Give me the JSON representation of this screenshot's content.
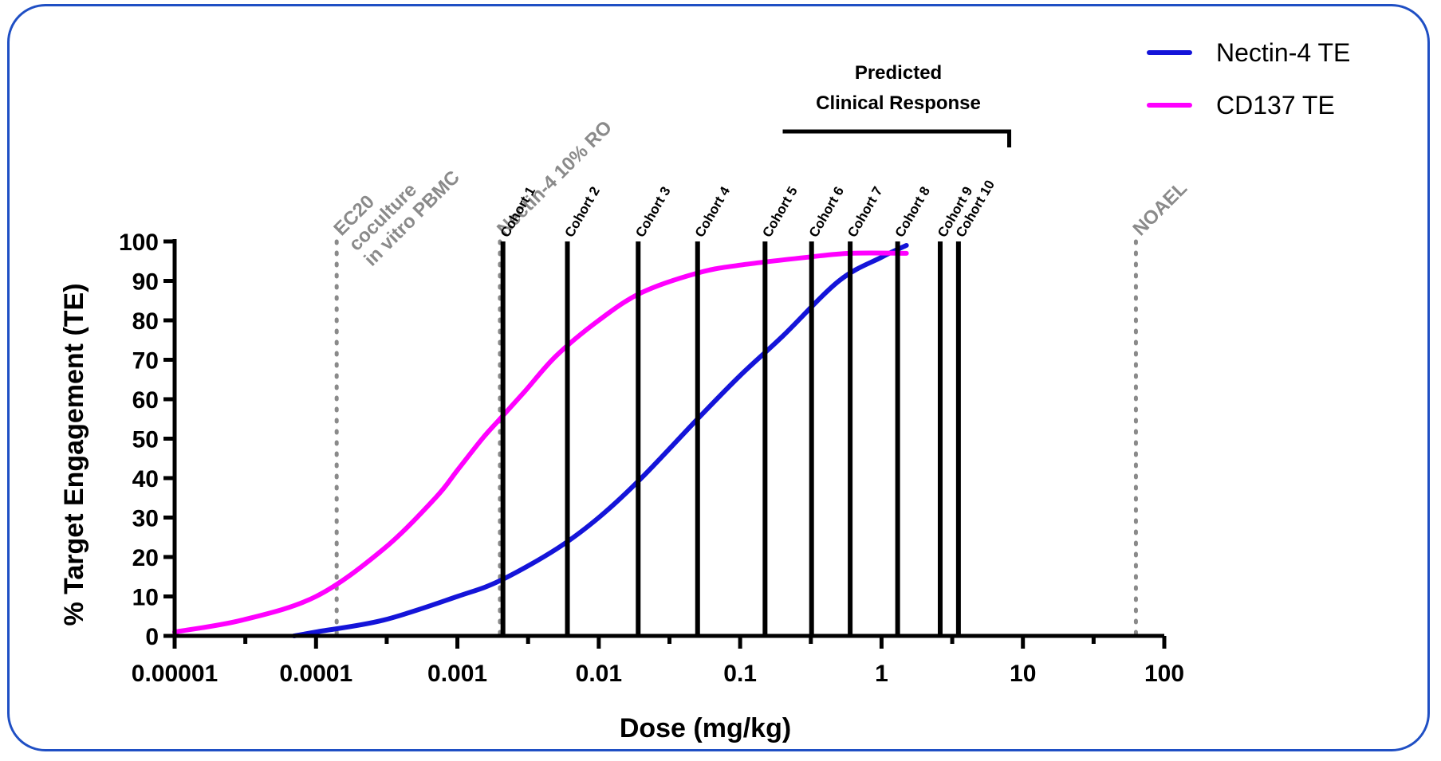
{
  "chart_data": {
    "type": "line",
    "xlabel": "Dose (mg/kg)",
    "ylabel": "% Target Engagement (TE)",
    "xscale": "log",
    "xlim": [
      1e-05,
      100
    ],
    "ylim": [
      0,
      100
    ],
    "x_ticks": [
      1e-05,
      0.0001,
      0.001,
      0.01,
      0.1,
      1,
      10,
      100
    ],
    "x_tick_labels": [
      "0.00001",
      "0.0001",
      "0.001",
      "0.01",
      "0.1",
      "1",
      "10",
      "100"
    ],
    "y_ticks": [
      0,
      10,
      20,
      30,
      40,
      50,
      60,
      70,
      80,
      90,
      100
    ],
    "y_tick_labels": [
      "0",
      "10",
      "20",
      "30",
      "40",
      "50",
      "60",
      "70",
      "80",
      "90",
      "100"
    ],
    "legend_position": "top-right",
    "series": [
      {
        "name": "Nectin-4 TE",
        "color": "#1414d9",
        "x": [
          7e-05,
          0.0001,
          0.0003,
          0.001,
          0.002,
          0.005,
          0.01,
          0.02,
          0.05,
          0.1,
          0.2,
          0.5,
          1,
          1.5
        ],
        "y": [
          0,
          1,
          4,
          10,
          14,
          22,
          30,
          40,
          55,
          66,
          76,
          90,
          96,
          99
        ]
      },
      {
        "name": "CD137 TE",
        "color": "#ff00ff",
        "x": [
          1e-05,
          3e-05,
          0.0001,
          0.0003,
          0.0007,
          0.001,
          0.0015,
          0.002,
          0.003,
          0.005,
          0.01,
          0.02,
          0.05,
          0.1,
          0.3,
          0.6,
          1.5
        ],
        "y": [
          1,
          4,
          10,
          22,
          35,
          42,
          50,
          55,
          62,
          71,
          80,
          87,
          92,
          94,
          96,
          97,
          97
        ]
      }
    ],
    "cohorts": [
      {
        "label": "Cohort 1",
        "dose": 0.0021
      },
      {
        "label": "Cohort 2",
        "dose": 0.006
      },
      {
        "label": "Cohort 3",
        "dose": 0.019
      },
      {
        "label": "Cohort 4",
        "dose": 0.05
      },
      {
        "label": "Cohort 5",
        "dose": 0.15
      },
      {
        "label": "Cohort 6",
        "dose": 0.32
      },
      {
        "label": "Cohort 7",
        "dose": 0.6
      },
      {
        "label": "Cohort 8",
        "dose": 1.3
      },
      {
        "label": "Cohort 9",
        "dose": 2.6
      },
      {
        "label": "Cohort 10",
        "dose": 3.5
      }
    ],
    "reference_lines": [
      {
        "label_lines": [
          "in vitro PBMC",
          "coculture",
          "EC20"
        ],
        "dose": 0.00014,
        "color": "#8a8a8a"
      },
      {
        "label_lines": [
          "Nectin-4 10% RO"
        ],
        "dose": 0.002,
        "color": "#8a8a8a"
      },
      {
        "label_lines": [
          "NOAEL"
        ],
        "dose": 63,
        "color": "#8a8a8a"
      }
    ],
    "bracket": {
      "label_lines": [
        "Predicted",
        "Clinical Response"
      ],
      "from_dose": 0.2,
      "to_dose": 8
    }
  }
}
